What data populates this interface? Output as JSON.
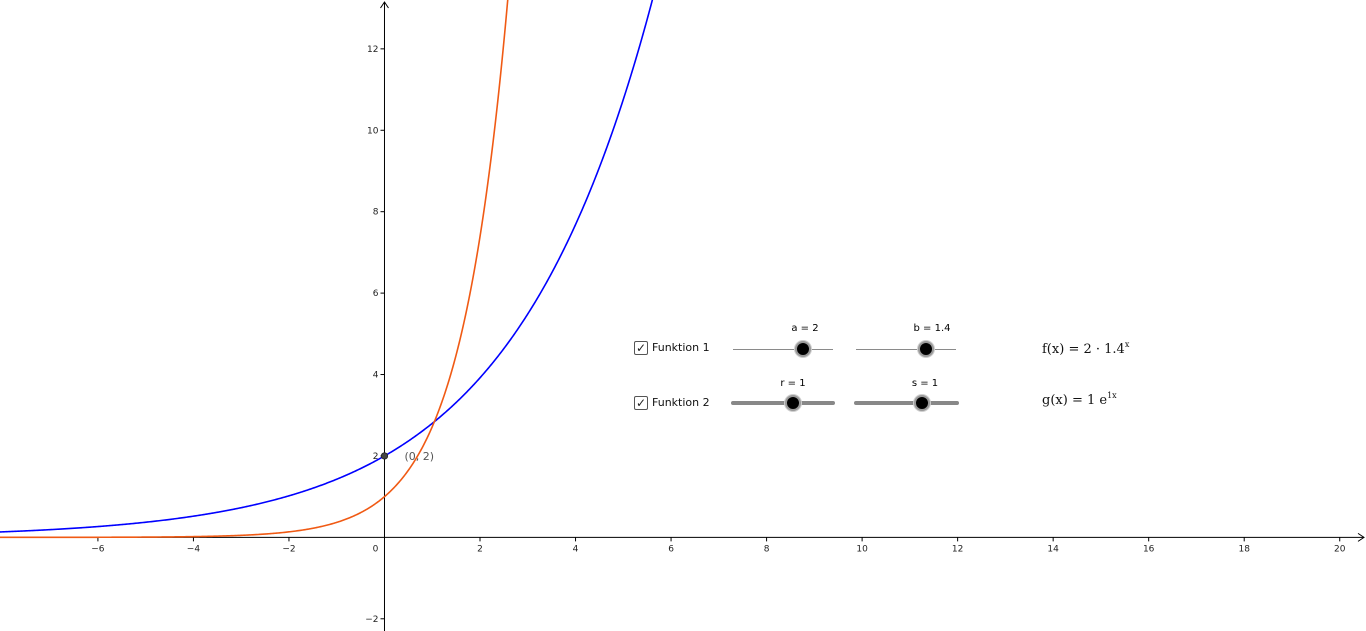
{
  "chart_data": {
    "type": "line",
    "xlim": [
      -8.05,
      20.55
    ],
    "ylim": [
      -2.3,
      13.2
    ],
    "x_ticks": [
      "−6",
      "−4",
      "−2",
      "0",
      "2",
      "4",
      "6",
      "8",
      "10",
      "12",
      "14",
      "16",
      "18",
      "20"
    ],
    "y_ticks": [
      "−2",
      "2",
      "4",
      "6",
      "8",
      "10",
      "12"
    ],
    "series": [
      {
        "function": "f",
        "a": 2,
        "b": 1.4,
        "color": "#0000ff"
      },
      {
        "function": "g",
        "r": 1,
        "s": 1,
        "color": "#f05a14"
      }
    ],
    "points": [
      {
        "x": 0,
        "y": 2,
        "label": "(0, 2)"
      }
    ]
  },
  "controls": {
    "funktion1": {
      "checked": true,
      "checkmark": "✓",
      "label": "Funktion 1",
      "slider_a": {
        "label": "a = 2",
        "value": 2,
        "fraction": 0.7
      },
      "slider_b": {
        "label": "b = 1.4",
        "value": 1.4,
        "fraction": 0.7
      },
      "formula": {
        "lhs": "f(x)",
        "eq": "=",
        "base": "2 · 1.4",
        "exp": "x"
      }
    },
    "funktion2": {
      "checked": true,
      "checkmark": "✓",
      "label": "Funktion 2",
      "slider_r": {
        "label": "r = 1",
        "value": 1,
        "fraction": 0.6
      },
      "slider_s": {
        "label": "s = 1",
        "value": 1,
        "fraction": 0.65
      },
      "formula": {
        "lhs": "g(x)",
        "eq": "=",
        "base": "1 e",
        "exp": "1x"
      }
    }
  },
  "icons": {
    "checkbox": "checkbox-icon"
  }
}
